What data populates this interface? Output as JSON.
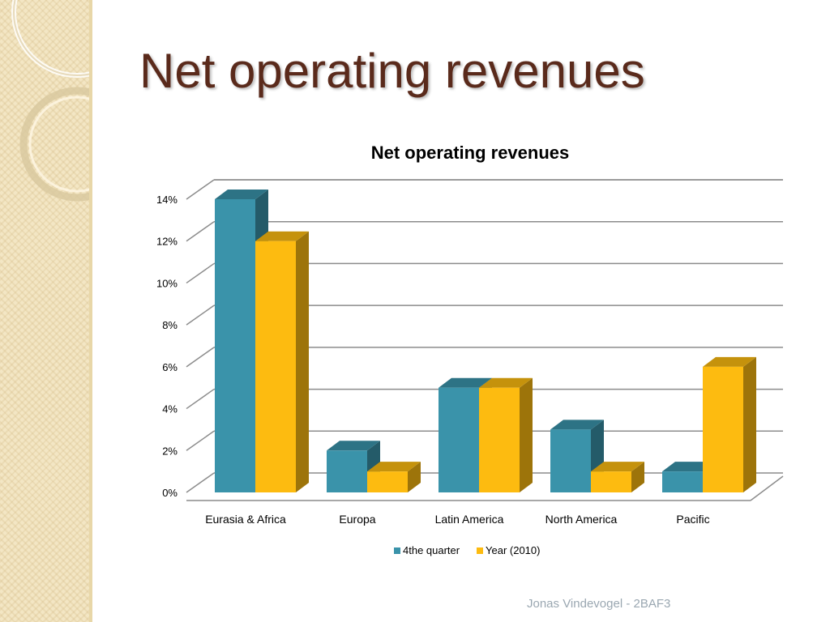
{
  "slide": {
    "title": "Net operating revenues",
    "footer": "Jonas Vindevogel - 2BAF3"
  },
  "colors": {
    "title": "#5a2a1b",
    "series_quarter": "#3a93aa",
    "series_year": "#fdbb10",
    "grid": "#8c8c8c",
    "footer": "#9aa7b1",
    "sidebar": "#f3e6c4"
  },
  "chart_data": {
    "type": "bar",
    "title": "Net operating revenues",
    "categories": [
      "Eurasia & Africa",
      "Europa",
      "Latin America",
      "North America",
      "Pacific"
    ],
    "series": [
      {
        "name": "4the quarter",
        "values": [
          14,
          2,
          5,
          3,
          1
        ]
      },
      {
        "name": "Year (2010)",
        "values": [
          12,
          1,
          5,
          1,
          6
        ]
      }
    ],
    "y_tick_labels": [
      "0%",
      "2%",
      "4%",
      "6%",
      "8%",
      "10%",
      "12%",
      "14%"
    ],
    "ylim": [
      0,
      14
    ],
    "xlabel": "",
    "ylabel": "",
    "grid": true,
    "legend": "bottom",
    "style": "3d-clustered-column"
  }
}
